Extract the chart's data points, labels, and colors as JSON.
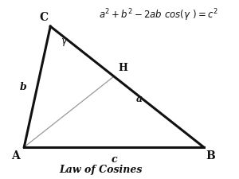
{
  "A": [
    0.1,
    0.16
  ],
  "B": [
    0.92,
    0.16
  ],
  "C": [
    0.22,
    0.86
  ],
  "formula": "$a^2 + b^2 - 2ab\\ cos(\\gamma\\ ) = c^2$",
  "label_A": "A",
  "label_B": "B",
  "label_C": "C",
  "label_H": "H",
  "label_a": "a",
  "label_b": "b",
  "label_c": "c",
  "label_gamma": "$\\gamma$",
  "title": "Law of Cosines",
  "triangle_color": "#111111",
  "dashed_color": "#999999",
  "text_color": "#111111",
  "background_color": "#ffffff",
  "lw_triangle": 2.2,
  "lw_dashed": 0.9
}
